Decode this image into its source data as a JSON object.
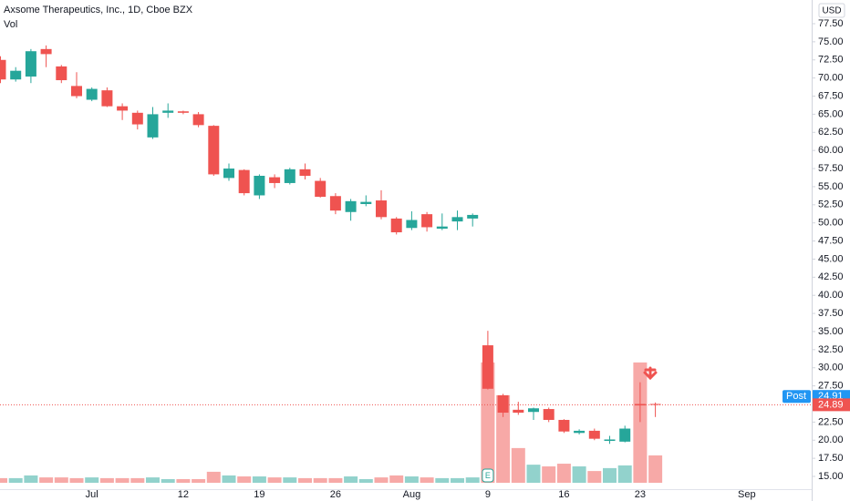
{
  "chart_data": {
    "type": "candlestick",
    "title": "Axsome Therapeutics, Inc., 1D, Cboe BZX",
    "currency": "USD",
    "categories": [
      null,
      null,
      null,
      null,
      null,
      null,
      "Jul",
      null,
      null,
      null,
      null,
      null,
      "12",
      null,
      null,
      null,
      null,
      "19",
      null,
      null,
      null,
      null,
      "26",
      null,
      null,
      null,
      null,
      "Aug",
      null,
      null,
      null,
      null,
      "9",
      null,
      null,
      null,
      null,
      "16",
      null,
      null,
      null,
      null,
      "23",
      null,
      null,
      null,
      null,
      null,
      null,
      "Sep"
    ],
    "open": [
      72.5,
      69.8,
      70.2,
      74,
      71.6,
      68.9,
      67,
      68.3,
      66.1,
      65.2,
      61.8,
      65.2,
      65.4,
      65,
      63.4,
      56.2,
      57.3,
      53.8,
      56.3,
      55.5,
      57.4,
      55.8,
      53.7,
      51.5,
      52.6,
      53.1,
      50.6,
      49.3,
      51.2,
      49.2,
      50.2,
      50.6,
      33.1,
      26.2,
      24.2,
      23.9,
      24.3,
      22.8,
      21,
      21.3,
      19.9,
      19.8,
      25,
      25,
      null,
      null,
      null,
      null,
      null,
      null
    ],
    "high": [
      73,
      71.5,
      74,
      74.5,
      71.8,
      70.8,
      68.7,
      68.7,
      66.5,
      65.5,
      66,
      66.5,
      65.5,
      65.3,
      63.5,
      58.2,
      57.4,
      56.7,
      56.7,
      57.6,
      58.2,
      56.2,
      54.1,
      53.3,
      53.8,
      54.5,
      50.8,
      51.6,
      51.5,
      51.3,
      51.7,
      51.3,
      35.1,
      26.4,
      25.3,
      24.5,
      24.5,
      22.9,
      21.5,
      21.6,
      20.6,
      22,
      28,
      25.2,
      null,
      null,
      null,
      null,
      null,
      null
    ],
    "low": [
      69.3,
      69.5,
      69.3,
      71.5,
      69.3,
      67.2,
      66.8,
      66,
      64.2,
      62.9,
      61.6,
      64.5,
      65,
      63.2,
      56.5,
      55.8,
      53.8,
      53.3,
      54.8,
      55.3,
      56,
      53.5,
      51.2,
      50.3,
      52.3,
      50.5,
      48.4,
      49,
      48.8,
      49,
      49,
      49.5,
      27,
      23.2,
      23.5,
      22.8,
      22.5,
      21,
      20.8,
      20,
      19.5,
      19.7,
      22.5,
      23.2,
      null,
      null,
      null,
      null,
      null,
      null
    ],
    "close": [
      69.8,
      71,
      73.7,
      73.3,
      69.7,
      67.5,
      68.5,
      66.1,
      65.5,
      63.6,
      65,
      65.5,
      65.2,
      63.5,
      56.7,
      57.5,
      54.1,
      56.5,
      55.5,
      57.4,
      56.5,
      53.6,
      51.7,
      53,
      52.9,
      50.8,
      48.7,
      50.4,
      49.4,
      49.5,
      50.8,
      51.1,
      27.1,
      23.8,
      23.8,
      24.4,
      22.8,
      21.2,
      21.3,
      20.2,
      20.1,
      21.6,
      24.8,
      24.89,
      null,
      null,
      null,
      null,
      null,
      null
    ],
    "up_color": "#26a69a",
    "down_color": "#ef5350",
    "volume": {
      "name": "Vol",
      "values": [
        0.19,
        0.19,
        0.3,
        0.22,
        0.22,
        0.19,
        0.22,
        0.19,
        0.19,
        0.19,
        0.22,
        0.15,
        0.15,
        0.15,
        0.45,
        0.3,
        0.26,
        0.26,
        0.22,
        0.22,
        0.19,
        0.19,
        0.19,
        0.26,
        0.15,
        0.22,
        0.3,
        0.26,
        0.22,
        0.19,
        0.19,
        0.22,
        4.92,
        3.58,
        1.42,
        0.74,
        0.67,
        0.78,
        0.67,
        0.48,
        0.6,
        0.71,
        4.92,
        1.12,
        null,
        null,
        null,
        null,
        null,
        null
      ],
      "vlim": [
        0,
        20
      ]
    },
    "ylim": [
      13.24,
      80.77
    ],
    "yticks": [
      {
        "value": 15,
        "label": "15.00"
      },
      {
        "value": 17.5,
        "label": "17.50"
      },
      {
        "value": 20,
        "label": "20.00"
      },
      {
        "value": 22.5,
        "label": "22.50"
      },
      {
        "value": 25,
        "label": "25.00"
      },
      {
        "value": 27.5,
        "label": "27.50"
      },
      {
        "value": 30,
        "label": "30.00"
      },
      {
        "value": 32.5,
        "label": "32.50"
      },
      {
        "value": 35,
        "label": "35.00"
      },
      {
        "value": 37.5,
        "label": "37.50"
      },
      {
        "value": 40,
        "label": "40.00"
      },
      {
        "value": 42.5,
        "label": "42.50"
      },
      {
        "value": 45,
        "label": "45.00"
      },
      {
        "value": 47.5,
        "label": "47.50"
      },
      {
        "value": 50,
        "label": "50.00"
      },
      {
        "value": 52.5,
        "label": "52.50"
      },
      {
        "value": 55,
        "label": "55.00"
      },
      {
        "value": 57.5,
        "label": "57.50"
      },
      {
        "value": 60,
        "label": "60.00"
      },
      {
        "value": 62.5,
        "label": "62.50"
      },
      {
        "value": 65,
        "label": "65.00"
      },
      {
        "value": 67.5,
        "label": "67.50"
      },
      {
        "value": 70,
        "label": "70.00"
      },
      {
        "value": 72.5,
        "label": "72.50"
      },
      {
        "value": 75,
        "label": "75.00"
      },
      {
        "value": 77.5,
        "label": "77.50"
      }
    ],
    "grid": false,
    "post_label": "Post",
    "post_price": 24.91,
    "last_price": 24.89,
    "earnings_marker": "E"
  }
}
